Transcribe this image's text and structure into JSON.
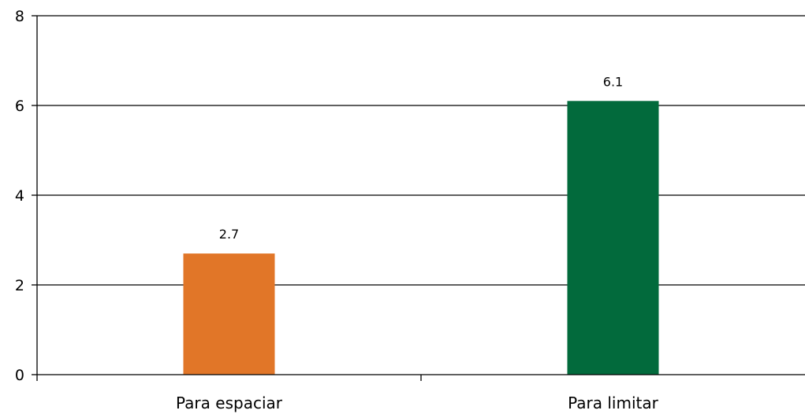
{
  "chart_data": {
    "type": "bar",
    "categories": [
      "Para espaciar",
      "Para limitar"
    ],
    "values": [
      2.7,
      6.1
    ],
    "value_labels": [
      "2.7",
      "6.1"
    ],
    "ylim": [
      0,
      8
    ],
    "yticks": [
      0,
      2,
      4,
      6,
      8
    ],
    "ytick_labels": [
      "0",
      "2",
      "4",
      "6",
      "8"
    ],
    "grid": true,
    "legend": "none",
    "colors": [
      "#e17628",
      "#026a3c"
    ]
  }
}
